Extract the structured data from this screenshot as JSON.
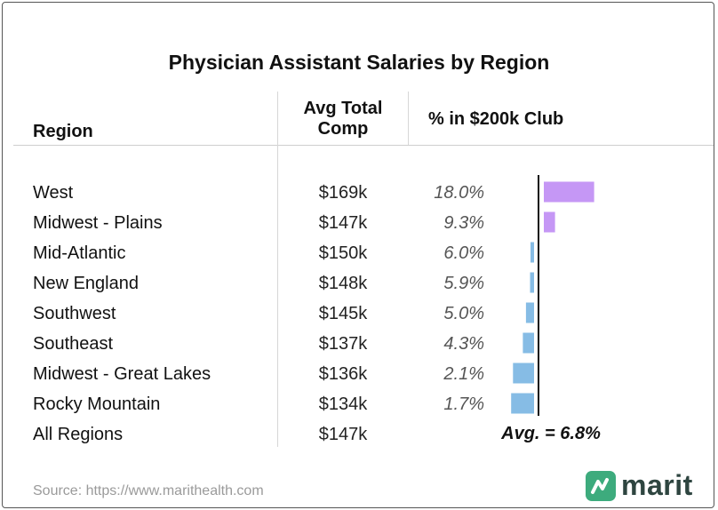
{
  "chart_data": {
    "type": "table",
    "title": "Physician Assistant Salaries by Region",
    "columns": [
      "Region",
      "Avg Total Comp",
      "% in $200k Club"
    ],
    "rows": [
      {
        "region": "West",
        "comp": "$169k",
        "pct_label": "18.0%",
        "pct": 18.0
      },
      {
        "region": "Midwest - Plains",
        "comp": "$147k",
        "pct_label": "9.3%",
        "pct": 9.3
      },
      {
        "region": "Mid-Atlantic",
        "comp": "$150k",
        "pct_label": "6.0%",
        "pct": 6.0
      },
      {
        "region": "New England",
        "comp": "$148k",
        "pct_label": "5.9%",
        "pct": 5.9
      },
      {
        "region": "Southwest",
        "comp": "$145k",
        "pct_label": "5.0%",
        "pct": 5.0
      },
      {
        "region": "Southeast",
        "comp": "$137k",
        "pct_label": "4.3%",
        "pct": 4.3
      },
      {
        "region": "Midwest - Great Lakes",
        "comp": "$136k",
        "pct_label": "2.1%",
        "pct": 2.1
      },
      {
        "region": "Rocky Mountain",
        "comp": "$134k",
        "pct_label": "1.7%",
        "pct": 1.7
      }
    ],
    "total": {
      "region": "All Regions",
      "comp": "$147k"
    },
    "average": 6.8,
    "average_label": "Avg. = 6.8%",
    "colors": {
      "above_avg": "#c597f5",
      "below_avg": "#86bce5",
      "avg_line": "#111111"
    }
  },
  "footer": {
    "source": "Source: https://www.marithealth.com",
    "brand": "marit"
  }
}
